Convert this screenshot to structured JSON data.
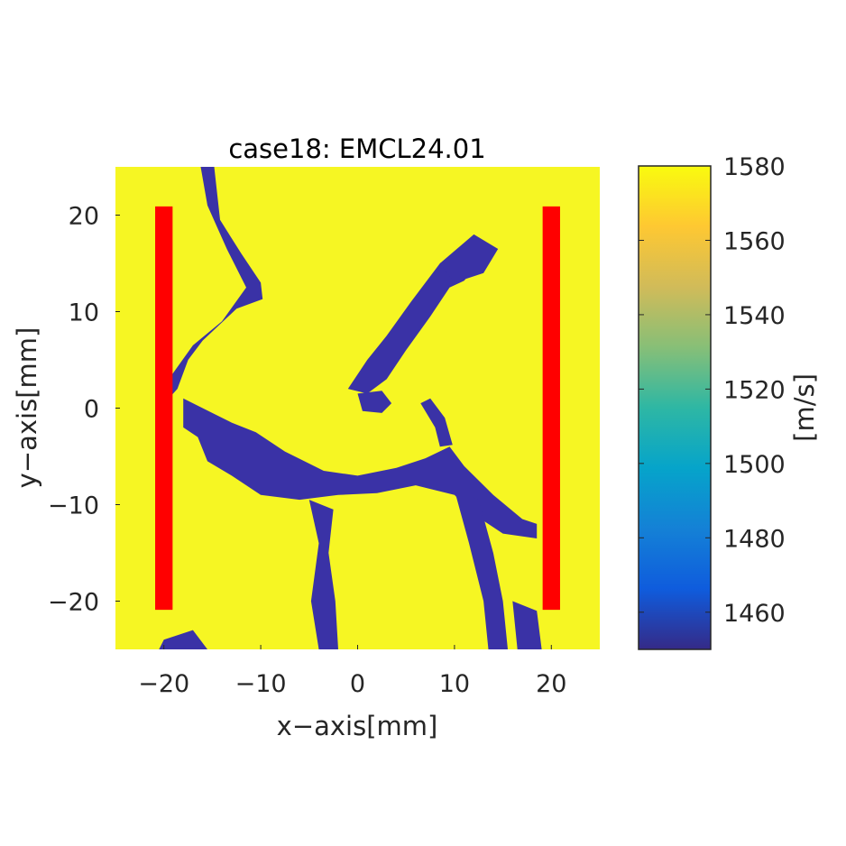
{
  "chart_data": {
    "type": "heatmap",
    "title": "case18: EMCL24.01",
    "xlabel": "x−axis[mm]",
    "ylabel": "y−axis[mm]",
    "xlim": [
      -25,
      25
    ],
    "ylim": [
      -25,
      25
    ],
    "xticks": [
      -20,
      -10,
      0,
      10,
      20
    ],
    "yticks": [
      20,
      10,
      0,
      -10,
      -20
    ],
    "xtick_labels": [
      "−20",
      "−10",
      "0",
      "10",
      "20"
    ],
    "ytick_labels": [
      "20",
      "10",
      "0",
      "−10",
      "−20"
    ],
    "background_value": 1580,
    "inclusion_value": 1450,
    "inclusion_regions": [
      {
        "label": "upper-left vein",
        "points": [
          [
            -16.2,
            25
          ],
          [
            -14.8,
            25
          ],
          [
            -14.2,
            19.5
          ],
          [
            -12,
            16
          ],
          [
            -10,
            13
          ],
          [
            -9.8,
            11.3
          ],
          [
            -12.5,
            10.3
          ],
          [
            -16,
            7
          ],
          [
            -17.5,
            5
          ],
          [
            -18.6,
            2
          ],
          [
            -19.5,
            1
          ],
          [
            -19.5,
            3
          ],
          [
            -17,
            6.5
          ],
          [
            -14,
            9
          ],
          [
            -11.5,
            12.5
          ],
          [
            -13.5,
            16.5
          ],
          [
            -15.5,
            21
          ]
        ]
      },
      {
        "label": "central horizontal crack",
        "points": [
          [
            -18,
            1
          ],
          [
            -15,
            -0.5
          ],
          [
            -13,
            -1.5
          ],
          [
            -10.5,
            -2.5
          ],
          [
            -7.5,
            -4.5
          ],
          [
            -3.5,
            -6.5
          ],
          [
            0,
            -7
          ],
          [
            4,
            -6.2
          ],
          [
            7,
            -5.2
          ],
          [
            9.5,
            -4
          ],
          [
            11,
            -6
          ],
          [
            14,
            -9
          ],
          [
            17,
            -11.5
          ],
          [
            18.5,
            -12
          ],
          [
            18.5,
            -13.5
          ],
          [
            15,
            -13
          ],
          [
            12,
            -11
          ],
          [
            10,
            -9
          ],
          [
            6,
            -8
          ],
          [
            2,
            -8.8
          ],
          [
            -2,
            -9
          ],
          [
            -6,
            -9.5
          ],
          [
            -10,
            -9
          ],
          [
            -13,
            -7
          ],
          [
            -15.5,
            -5.5
          ],
          [
            -16.5,
            -3
          ],
          [
            -18,
            -2
          ]
        ]
      },
      {
        "label": "diagonal upper vein",
        "points": [
          [
            -1,
            2
          ],
          [
            1,
            5
          ],
          [
            3,
            7.5
          ],
          [
            5.5,
            11
          ],
          [
            8.5,
            15
          ],
          [
            11,
            16.5
          ],
          [
            12.5,
            15
          ],
          [
            11,
            13.2
          ],
          [
            9.5,
            12.5
          ],
          [
            7.5,
            9.5
          ],
          [
            5,
            6
          ],
          [
            3,
            3
          ],
          [
            1,
            1.5
          ]
        ]
      },
      {
        "label": "upper-right vein",
        "points": [
          [
            8.5,
            15
          ],
          [
            12,
            18
          ],
          [
            14.5,
            16.5
          ],
          [
            13,
            14
          ],
          [
            10,
            13
          ]
        ]
      },
      {
        "label": "small center blob",
        "points": [
          [
            0,
            1.5
          ],
          [
            2.5,
            1.8
          ],
          [
            3.5,
            0.5
          ],
          [
            2.5,
            -0.5
          ],
          [
            0.5,
            -0.3
          ]
        ]
      },
      {
        "label": "right mid vein",
        "points": [
          [
            6.5,
            0.5
          ],
          [
            8,
            -2
          ],
          [
            8.5,
            -4
          ],
          [
            9.8,
            -3.8
          ],
          [
            9,
            -1
          ],
          [
            7.5,
            1
          ]
        ]
      },
      {
        "label": "lower center vein",
        "points": [
          [
            -5,
            -9.5
          ],
          [
            -4,
            -14
          ],
          [
            -4.8,
            -20
          ],
          [
            -4,
            -25
          ],
          [
            -2,
            -25
          ],
          [
            -2.3,
            -20
          ],
          [
            -3,
            -15
          ],
          [
            -2.5,
            -10.5
          ]
        ]
      },
      {
        "label": "lower right vein",
        "points": [
          [
            10,
            -8.5
          ],
          [
            11.5,
            -14
          ],
          [
            13,
            -20
          ],
          [
            13.5,
            -25
          ],
          [
            15.5,
            -25
          ],
          [
            15,
            -20
          ],
          [
            14,
            -15
          ],
          [
            12.5,
            -9.5
          ]
        ]
      },
      {
        "label": "lower right bottom blob",
        "points": [
          [
            16,
            -20
          ],
          [
            18.5,
            -21
          ],
          [
            19,
            -25
          ],
          [
            16.5,
            -25
          ]
        ]
      },
      {
        "label": "bottom-left blob",
        "points": [
          [
            -20,
            -24
          ],
          [
            -17,
            -23
          ],
          [
            -15.5,
            -25
          ],
          [
            -20.5,
            -25
          ]
        ]
      }
    ],
    "transducers": [
      {
        "x_range": [
          -20.9,
          -19.1
        ],
        "y_range": [
          -20.9,
          20.9
        ]
      },
      {
        "x_range": [
          19.1,
          20.9
        ],
        "y_range": [
          -20.9,
          20.9
        ]
      }
    ],
    "colorbar": {
      "label": "[m/s]",
      "range": [
        1450,
        1580
      ],
      "ticks": [
        1580,
        1560,
        1540,
        1520,
        1500,
        1480,
        1460
      ],
      "tick_labels": [
        "1580",
        "1560",
        "1540",
        "1520",
        "1500",
        "1480",
        "1460"
      ],
      "colormap": "parula",
      "colors": [
        "#352a87",
        "#0f5cdd",
        "#1481d6",
        "#06a4ca",
        "#2eb7a4",
        "#87bf77",
        "#d1bb59",
        "#fec832",
        "#f9fb0e"
      ]
    },
    "colors": {
      "background": "#f6f623",
      "inclusion": "#3a32a6",
      "transducer": "#ff0000"
    }
  }
}
